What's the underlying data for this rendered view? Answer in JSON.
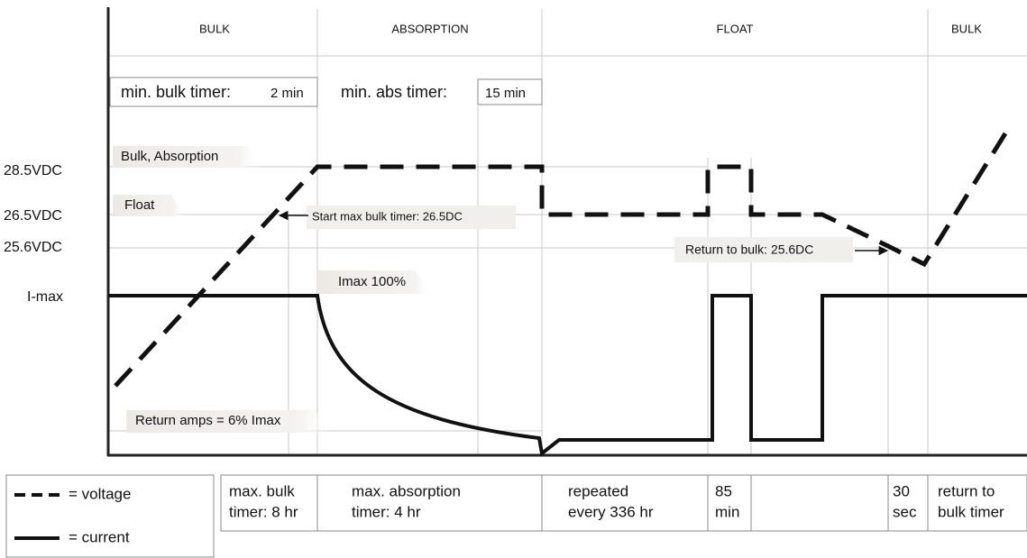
{
  "header": {
    "phases": [
      "BULK",
      "ABSORPTION",
      "FLOAT",
      "BULK"
    ]
  },
  "levels": [
    "28.5VDC",
    "26.5VDC",
    "25.6VDC",
    "I-max"
  ],
  "timers": [
    {
      "label": "min. bulk timer:",
      "value": "2 min"
    },
    {
      "label": "min. abs timer:",
      "value": "15 min"
    }
  ],
  "annotations": [
    "Bulk, Absorption",
    "Float",
    "Start max bulk timer: 26.5DC",
    "Return to bulk: 25.6DC",
    "Imax 100%",
    "Return amps = 6% Imax"
  ],
  "table": {
    "cells": [
      [
        "max. bulk",
        "timer: 8 hr"
      ],
      [
        "max. absorption",
        "timer: 4 hr"
      ],
      [
        "repeated",
        "every 336 hr"
      ],
      [
        "85",
        "min"
      ],
      [
        "30",
        "sec"
      ],
      [
        "return to",
        "bulk timer"
      ]
    ]
  },
  "legend": [
    "= voltage",
    "= current"
  ]
}
